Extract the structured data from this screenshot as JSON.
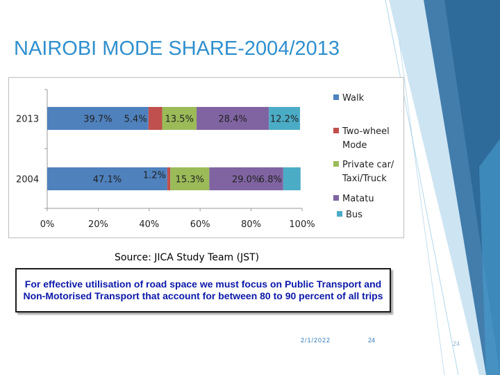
{
  "slide": {
    "title": "NAIROBI MODE SHARE-2004/2013",
    "source": "Source: JICA Study Team (JST)",
    "note": "For effective utilisation of road space we must focus on Public Transport and Non-Motorised Transport that account for between 80 to 90 percent of all trips",
    "date": "2/1/2022",
    "page_number": "24",
    "page_number_faded": "24"
  },
  "chart_data": {
    "type": "bar",
    "orientation": "horizontal",
    "stacked": true,
    "categories": [
      "2013",
      "2004"
    ],
    "series": [
      {
        "name": "Walk",
        "color": "#4f81bd",
        "values": [
          39.7,
          47.1
        ],
        "labels": [
          "39.7%",
          "47.1%"
        ]
      },
      {
        "name": "Two-wheel Mode",
        "color": "#c0504d",
        "values": [
          5.4,
          1.2
        ],
        "labels": [
          "5.4%",
          "1.2%"
        ]
      },
      {
        "name": "Private car/ Taxi/Truck",
        "color": "#9bbb59",
        "values": [
          13.5,
          15.3
        ],
        "labels": [
          "13.5%",
          "15.3%"
        ]
      },
      {
        "name": "Matatu",
        "color": "#8064a2",
        "values": [
          28.4,
          29.0
        ],
        "labels": [
          "28.4%",
          "29.0%"
        ]
      },
      {
        "name": "Bus",
        "color": "#4bacc6",
        "values": [
          12.2,
          6.8
        ],
        "labels": [
          "12.2%",
          "6.8%"
        ]
      }
    ],
    "xlim": [
      0,
      100
    ],
    "x_ticks": [
      "0%",
      "20%",
      "40%",
      "60%",
      "80%",
      "100%"
    ],
    "legend_position": "right",
    "grid": false
  }
}
